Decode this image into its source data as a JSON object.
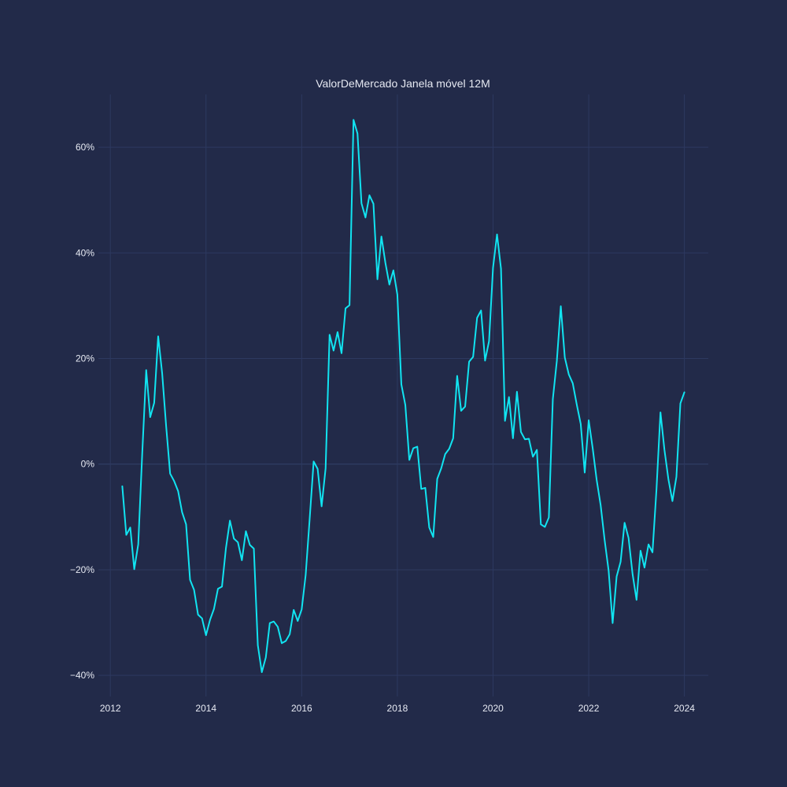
{
  "chart_data": {
    "type": "line",
    "title": "ValorDeMercado Janela móvel 12M",
    "xlabel": "",
    "ylabel": "",
    "x_tick_labels": [
      "2012",
      "2014",
      "2016",
      "2018",
      "2020",
      "2022",
      "2024"
    ],
    "y_tick_labels": [
      "−40%",
      "−20%",
      "0%",
      "20%",
      "40%",
      "60%"
    ],
    "y_ticks": [
      -40,
      -20,
      0,
      20,
      40,
      60
    ],
    "xlim": [
      "2011-10",
      "2024-07"
    ],
    "ylim": [
      -44,
      70
    ],
    "grid": true,
    "legend": "none",
    "series_color": "#11e4f1",
    "background_color": "#222a49",
    "grid_color": "#2d3960",
    "series": [
      {
        "x_start": "2012-04",
        "x_step": "1 month",
        "values": [
          -4.2,
          -13.4,
          -12,
          -19.9,
          -15.2,
          2,
          17.8,
          8.9,
          11.6,
          24.2,
          17.2,
          7.2,
          -1.8,
          -3.2,
          -5.1,
          -9.1,
          -11.4,
          -21.9,
          -23.8,
          -28.5,
          -29.2,
          -32.4,
          -29.5,
          -27.4,
          -23.6,
          -23.2,
          -15.9,
          -10.7,
          -14.1,
          -14.8,
          -18.2,
          -12.7,
          -15.3,
          -16,
          -34.3,
          -39.4,
          -36.6,
          -30.1,
          -29.8,
          -30.8,
          -33.9,
          -33.5,
          -32.2,
          -27.6,
          -29.7,
          -27.5,
          -21,
          -10.4,
          0.5,
          -0.9,
          -8,
          -0.8,
          24.5,
          21.5,
          25,
          21,
          29.5,
          30.1,
          65.2,
          62.6,
          49.4,
          46.7,
          50.9,
          49.3,
          35,
          43.1,
          38.1,
          34,
          36.7,
          32.1,
          15.1,
          11.2,
          0.8,
          3,
          3.3,
          -4.7,
          -4.5,
          -12,
          -13.8,
          -2.8,
          -0.8,
          1.9,
          2.9,
          4.9,
          16.7,
          10.1,
          10.9,
          19.4,
          20.3,
          27.7,
          29.1,
          19.6,
          23.3,
          37.2,
          43.5,
          37,
          8.2,
          12.7,
          4.9,
          13.7,
          6.1,
          4.7,
          4.8,
          1.4,
          2.7,
          -11.4,
          -11.9,
          -10.1,
          12.3,
          19.5,
          29.9,
          20.2,
          17,
          15.3,
          11.3,
          7.6,
          -1.6,
          8.3,
          3,
          -3,
          -7.8,
          -14.4,
          -20.2,
          -30.1,
          -21.3,
          -18.5,
          -11.1,
          -14,
          -20.8,
          -25.7,
          -16.4,
          -19.6,
          -15.2,
          -16.7,
          -4.8,
          9.8,
          2.7,
          -2.9,
          -7,
          -2.4,
          11.5,
          13.6
        ]
      }
    ]
  }
}
